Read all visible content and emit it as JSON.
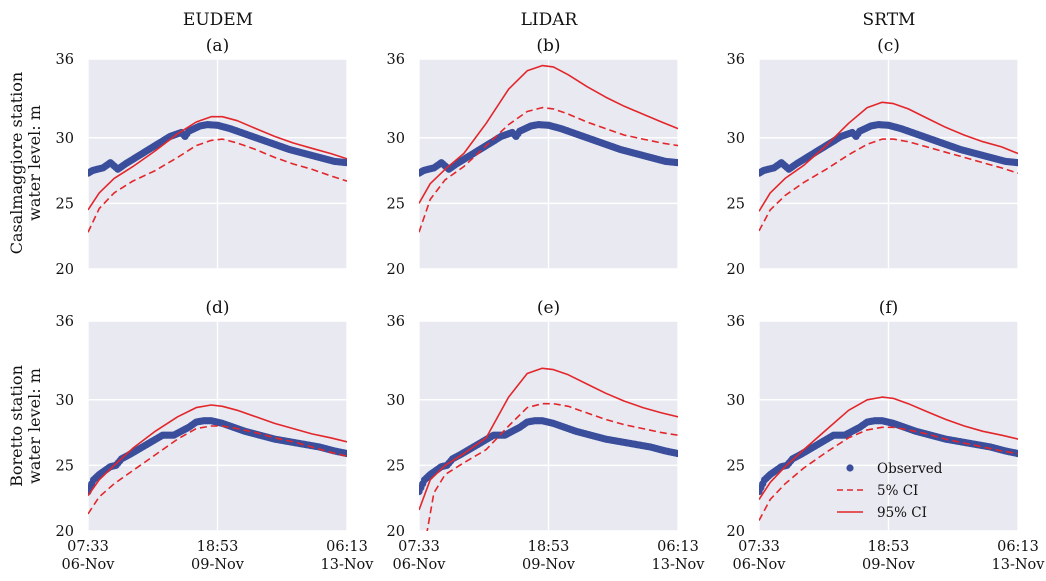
{
  "columns": [
    "EUDEM",
    "LIDAR",
    "SRTM"
  ],
  "row_labels": [
    [
      "Casalmaggiore station",
      "water level: m"
    ],
    [
      "Boretto station",
      "water level: m"
    ]
  ],
  "legend": {
    "observed": "Observed",
    "ci5": "5% CI",
    "ci95": "95% CI",
    "placement": "lower-right of panel (f)"
  },
  "colors": {
    "observed": "#3a4e9c",
    "ci": "#e3262a",
    "panel_bg": "#e8e9f1",
    "grid": "#ffffff"
  },
  "chart_data": [
    {
      "type": "line",
      "title": "(a)",
      "column": "EUDEM",
      "station": "Casalmaggiore",
      "xticks": [
        "07:33\n06-Nov",
        "18:53\n09-Nov",
        "06:13\n13-Nov"
      ],
      "xlim": [
        0,
        6.94
      ],
      "ylim": [
        20,
        36
      ],
      "yticks": [
        20,
        25,
        30,
        36
      ],
      "grid": true,
      "series": [
        {
          "name": "Observed",
          "style": "markers",
          "x": [
            0,
            0.12,
            0.25,
            0.4,
            0.6,
            0.8,
            1.0,
            1.4,
            1.8,
            2.2,
            2.5,
            2.6,
            2.7,
            3.0,
            3.2,
            3.47,
            3.8,
            4.2,
            4.6,
            5.0,
            5.4,
            5.8,
            6.2,
            6.6,
            6.94
          ],
          "y": [
            27.3,
            27.5,
            27.6,
            27.7,
            28.1,
            27.6,
            28.0,
            28.7,
            29.4,
            30.1,
            30.4,
            30.1,
            30.5,
            30.9,
            31.0,
            30.95,
            30.7,
            30.3,
            29.9,
            29.5,
            29.1,
            28.8,
            28.5,
            28.2,
            28.1
          ]
        },
        {
          "name": "5% CI",
          "style": "dashed",
          "x": [
            0,
            0.3,
            0.7,
            1.2,
            1.8,
            2.4,
            2.9,
            3.3,
            3.6,
            4.0,
            4.5,
            5.0,
            5.5,
            6.0,
            6.5,
            6.94
          ],
          "y": [
            22.8,
            24.6,
            25.8,
            26.7,
            27.5,
            28.5,
            29.4,
            29.8,
            29.9,
            29.6,
            29.1,
            28.5,
            28.0,
            27.6,
            27.1,
            26.7
          ]
        },
        {
          "name": "95% CI",
          "style": "solid",
          "x": [
            0,
            0.3,
            0.7,
            1.2,
            1.8,
            2.4,
            2.9,
            3.3,
            3.6,
            4.0,
            4.5,
            5.0,
            5.5,
            6.0,
            6.5,
            6.94
          ],
          "y": [
            24.5,
            25.8,
            26.9,
            27.8,
            29.0,
            30.3,
            31.2,
            31.6,
            31.6,
            31.3,
            30.7,
            30.1,
            29.6,
            29.2,
            28.8,
            28.4
          ]
        }
      ]
    },
    {
      "type": "line",
      "title": "(b)",
      "column": "LIDAR",
      "station": "Casalmaggiore",
      "xticks": [
        "07:33\n06-Nov",
        "18:53\n09-Nov",
        "06:13\n13-Nov"
      ],
      "xlim": [
        0,
        6.94
      ],
      "ylim": [
        20,
        36
      ],
      "yticks": [
        20,
        25,
        30,
        36
      ],
      "grid": true,
      "series": [
        {
          "name": "Observed",
          "style": "markers",
          "x": [
            0,
            0.12,
            0.25,
            0.4,
            0.6,
            0.8,
            1.0,
            1.4,
            1.8,
            2.2,
            2.5,
            2.6,
            2.7,
            3.0,
            3.2,
            3.47,
            3.8,
            4.2,
            4.6,
            5.0,
            5.4,
            5.8,
            6.2,
            6.6,
            6.94
          ],
          "y": [
            27.3,
            27.5,
            27.6,
            27.7,
            28.1,
            27.6,
            28.0,
            28.7,
            29.4,
            30.1,
            30.4,
            30.1,
            30.5,
            30.9,
            31.0,
            30.95,
            30.7,
            30.3,
            29.9,
            29.5,
            29.1,
            28.8,
            28.5,
            28.2,
            28.1
          ]
        },
        {
          "name": "5% CI",
          "style": "dashed",
          "x": [
            0,
            0.3,
            0.7,
            1.2,
            1.8,
            2.4,
            2.9,
            3.3,
            3.6,
            4.0,
            4.5,
            5.0,
            5.5,
            6.0,
            6.5,
            6.94
          ],
          "y": [
            22.8,
            25.3,
            26.8,
            27.8,
            29.4,
            31.0,
            32.0,
            32.3,
            32.2,
            31.8,
            31.2,
            30.7,
            30.2,
            29.9,
            29.6,
            29.4
          ]
        },
        {
          "name": "95% CI",
          "style": "solid",
          "x": [
            0,
            0.3,
            0.7,
            1.2,
            1.8,
            2.4,
            2.9,
            3.3,
            3.6,
            4.0,
            4.5,
            5.0,
            5.5,
            6.0,
            6.5,
            6.94
          ],
          "y": [
            25.0,
            26.5,
            27.6,
            28.8,
            31.1,
            33.7,
            35.1,
            35.5,
            35.4,
            34.8,
            33.9,
            33.1,
            32.4,
            31.8,
            31.2,
            30.7
          ]
        }
      ]
    },
    {
      "type": "line",
      "title": "(c)",
      "column": "SRTM",
      "station": "Casalmaggiore",
      "xticks": [
        "07:33\n06-Nov",
        "18:53\n09-Nov",
        "06:13\n13-Nov"
      ],
      "xlim": [
        0,
        6.94
      ],
      "ylim": [
        20,
        36
      ],
      "yticks": [
        20,
        25,
        30,
        36
      ],
      "grid": true,
      "series": [
        {
          "name": "Observed",
          "style": "markers",
          "x": [
            0,
            0.12,
            0.25,
            0.4,
            0.6,
            0.8,
            1.0,
            1.4,
            1.8,
            2.2,
            2.5,
            2.6,
            2.7,
            3.0,
            3.2,
            3.47,
            3.8,
            4.2,
            4.6,
            5.0,
            5.4,
            5.8,
            6.2,
            6.6,
            6.94
          ],
          "y": [
            27.3,
            27.5,
            27.6,
            27.7,
            28.1,
            27.6,
            28.0,
            28.7,
            29.4,
            30.1,
            30.4,
            30.1,
            30.5,
            30.9,
            31.0,
            30.95,
            30.7,
            30.3,
            29.9,
            29.5,
            29.1,
            28.8,
            28.5,
            28.2,
            28.1
          ]
        },
        {
          "name": "5% CI",
          "style": "dashed",
          "x": [
            0,
            0.3,
            0.7,
            1.2,
            1.8,
            2.4,
            2.9,
            3.3,
            3.6,
            4.0,
            4.5,
            5.0,
            5.5,
            6.0,
            6.5,
            6.94
          ],
          "y": [
            22.9,
            24.5,
            25.6,
            26.6,
            27.6,
            28.7,
            29.5,
            29.9,
            29.9,
            29.7,
            29.3,
            28.9,
            28.5,
            28.1,
            27.7,
            27.3
          ]
        },
        {
          "name": "95% CI",
          "style": "solid",
          "x": [
            0,
            0.3,
            0.7,
            1.2,
            1.8,
            2.4,
            2.9,
            3.3,
            3.6,
            4.0,
            4.5,
            5.0,
            5.5,
            6.0,
            6.5,
            6.94
          ],
          "y": [
            24.4,
            25.8,
            26.9,
            27.9,
            29.4,
            31.1,
            32.3,
            32.7,
            32.6,
            32.2,
            31.5,
            30.8,
            30.2,
            29.7,
            29.3,
            28.8
          ]
        }
      ]
    },
    {
      "type": "line",
      "title": "(d)",
      "column": "EUDEM",
      "station": "Boretto",
      "xticks": [
        "07:33\n06-Nov",
        "18:53\n09-Nov",
        "06:13\n13-Nov"
      ],
      "xlim": [
        0,
        6.94
      ],
      "ylim": [
        20,
        36
      ],
      "yticks": [
        20,
        25,
        30,
        36
      ],
      "grid": true,
      "series": [
        {
          "name": "Observed",
          "style": "markers",
          "x": [
            0,
            0.15,
            0.3,
            0.45,
            0.6,
            0.75,
            0.9,
            1.1,
            1.4,
            1.7,
            2.0,
            2.3,
            2.5,
            2.7,
            2.9,
            3.1,
            3.3,
            3.6,
            3.9,
            4.2,
            4.6,
            5.0,
            5.4,
            5.8,
            6.2,
            6.6,
            6.94
          ],
          "y": [
            23.0,
            23.9,
            24.3,
            24.6,
            24.9,
            25.0,
            25.5,
            25.8,
            26.3,
            26.8,
            27.3,
            27.3,
            27.6,
            27.9,
            28.3,
            28.4,
            28.4,
            28.2,
            27.9,
            27.6,
            27.3,
            27.0,
            26.8,
            26.6,
            26.4,
            26.1,
            25.9
          ]
        },
        {
          "name": "5% CI",
          "style": "dashed",
          "x": [
            0,
            0.3,
            0.7,
            1.2,
            1.8,
            2.4,
            2.9,
            3.3,
            3.6,
            4.0,
            4.5,
            5.0,
            5.5,
            6.0,
            6.5,
            6.94
          ],
          "y": [
            21.3,
            22.6,
            23.6,
            24.6,
            25.8,
            27.0,
            27.8,
            28.0,
            28.0,
            27.8,
            27.5,
            27.1,
            26.8,
            26.4,
            26.0,
            25.7
          ]
        },
        {
          "name": "95% CI",
          "style": "solid",
          "x": [
            0,
            0.3,
            0.7,
            1.2,
            1.8,
            2.4,
            2.9,
            3.3,
            3.6,
            4.0,
            4.5,
            5.0,
            5.5,
            6.0,
            6.5,
            6.94
          ],
          "y": [
            22.7,
            23.9,
            25.0,
            26.3,
            27.6,
            28.7,
            29.4,
            29.6,
            29.5,
            29.2,
            28.7,
            28.2,
            27.8,
            27.4,
            27.1,
            26.8
          ]
        }
      ]
    },
    {
      "type": "line",
      "title": "(e)",
      "column": "LIDAR",
      "station": "Boretto",
      "xticks": [
        "07:33\n06-Nov",
        "18:53\n09-Nov",
        "06:13\n13-Nov"
      ],
      "xlim": [
        0,
        6.94
      ],
      "ylim": [
        20,
        36
      ],
      "yticks": [
        20,
        25,
        30,
        36
      ],
      "grid": true,
      "series": [
        {
          "name": "Observed",
          "style": "markers",
          "x": [
            0,
            0.15,
            0.3,
            0.45,
            0.6,
            0.75,
            0.9,
            1.1,
            1.4,
            1.7,
            2.0,
            2.3,
            2.5,
            2.7,
            2.9,
            3.1,
            3.3,
            3.6,
            3.9,
            4.2,
            4.6,
            5.0,
            5.4,
            5.8,
            6.2,
            6.6,
            6.94
          ],
          "y": [
            23.0,
            23.9,
            24.3,
            24.6,
            24.9,
            25.0,
            25.5,
            25.8,
            26.3,
            26.8,
            27.3,
            27.3,
            27.6,
            27.9,
            28.3,
            28.4,
            28.4,
            28.2,
            27.9,
            27.6,
            27.3,
            27.0,
            26.8,
            26.6,
            26.4,
            26.1,
            25.9
          ]
        },
        {
          "name": "5% CI",
          "style": "dashed",
          "x": [
            0.2,
            0.4,
            0.7,
            1.2,
            1.8,
            2.4,
            2.9,
            3.3,
            3.6,
            4.0,
            4.5,
            5.0,
            5.5,
            6.0,
            6.5,
            6.94
          ],
          "y": [
            19.7,
            22.9,
            24.3,
            25.2,
            26.2,
            28.0,
            29.4,
            29.7,
            29.7,
            29.5,
            29.0,
            28.5,
            28.1,
            27.8,
            27.5,
            27.3
          ]
        },
        {
          "name": "95% CI",
          "style": "solid",
          "x": [
            0,
            0.3,
            0.7,
            1.2,
            1.8,
            2.4,
            2.9,
            3.3,
            3.6,
            4.0,
            4.5,
            5.0,
            5.5,
            6.0,
            6.5,
            6.94
          ],
          "y": [
            21.6,
            23.9,
            25.0,
            25.9,
            27.1,
            30.2,
            32.0,
            32.4,
            32.3,
            31.9,
            31.2,
            30.5,
            29.9,
            29.4,
            29.0,
            28.7
          ]
        }
      ]
    },
    {
      "type": "line",
      "title": "(f)",
      "column": "SRTM",
      "station": "Boretto",
      "xticks": [
        "07:33\n06-Nov",
        "18:53\n09-Nov",
        "06:13\n13-Nov"
      ],
      "xlim": [
        0,
        6.94
      ],
      "ylim": [
        20,
        36
      ],
      "yticks": [
        20,
        25,
        30,
        36
      ],
      "grid": true,
      "series": [
        {
          "name": "Observed",
          "style": "markers",
          "x": [
            0,
            0.15,
            0.3,
            0.45,
            0.6,
            0.75,
            0.9,
            1.1,
            1.4,
            1.7,
            2.0,
            2.3,
            2.5,
            2.7,
            2.9,
            3.1,
            3.3,
            3.6,
            3.9,
            4.2,
            4.6,
            5.0,
            5.4,
            5.8,
            6.2,
            6.6,
            6.94
          ],
          "y": [
            23.0,
            23.9,
            24.3,
            24.6,
            24.9,
            25.0,
            25.5,
            25.8,
            26.3,
            26.8,
            27.3,
            27.3,
            27.6,
            27.9,
            28.3,
            28.4,
            28.4,
            28.2,
            27.9,
            27.6,
            27.3,
            27.0,
            26.8,
            26.6,
            26.4,
            26.1,
            25.9
          ]
        },
        {
          "name": "5% CI",
          "style": "dashed",
          "x": [
            0,
            0.3,
            0.7,
            1.2,
            1.8,
            2.4,
            2.9,
            3.3,
            3.6,
            4.0,
            4.5,
            5.0,
            5.5,
            6.0,
            6.5,
            6.94
          ],
          "y": [
            20.8,
            22.4,
            23.6,
            24.8,
            26.0,
            27.1,
            27.7,
            27.9,
            27.9,
            27.7,
            27.4,
            27.0,
            26.7,
            26.4,
            26.1,
            25.9
          ]
        },
        {
          "name": "95% CI",
          "style": "solid",
          "x": [
            0,
            0.3,
            0.7,
            1.2,
            1.8,
            2.4,
            2.9,
            3.3,
            3.6,
            4.0,
            4.5,
            5.0,
            5.5,
            6.0,
            6.5,
            6.94
          ],
          "y": [
            22.4,
            23.7,
            24.9,
            26.2,
            27.7,
            29.2,
            30.0,
            30.2,
            30.1,
            29.7,
            29.1,
            28.5,
            28.0,
            27.6,
            27.3,
            27.0
          ]
        }
      ]
    }
  ]
}
